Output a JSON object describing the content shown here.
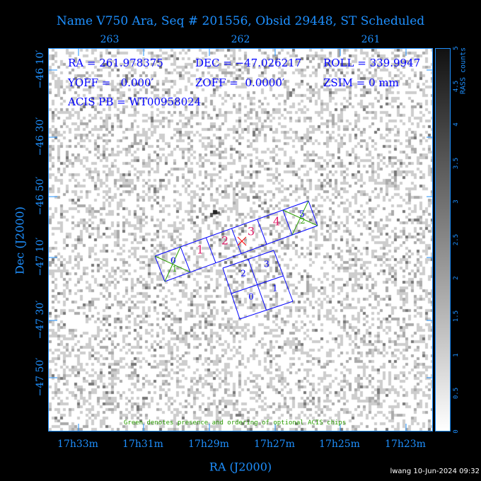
{
  "title": "Name V750 Ara, Seq # 201556, Obsid 29448, ST Scheduled",
  "top_axis": [
    "263",
    "262",
    "261"
  ],
  "bottom_axis": [
    "17h33m",
    "17h31m",
    "17h29m",
    "17h27m",
    "17h25m",
    "17h23m"
  ],
  "left_axis": [
    "−46 10′",
    "−46 30′",
    "−46 50′",
    "−47 10′",
    "−47 30′",
    "−47 50′"
  ],
  "xlabel": "RA (J2000)",
  "ylabel": "Dec (J2000)",
  "info": {
    "ra": "RA = 261.978375",
    "dec": "DEC = −47.026217",
    "roll": "ROLL = 339.9947",
    "yoff": "YOFF =   0.000′",
    "zoff": "ZOFF =  0.0000′",
    "zsim": "ZSIM = 0 mm",
    "acis_pb": "ACIS PB = WT00958024"
  },
  "colorbar": {
    "label": "RASS counts",
    "ticks": [
      "0",
      "0.5",
      "1",
      "1.5",
      "2",
      "2.5",
      "3",
      "3.5",
      "4",
      "4.5",
      "5"
    ],
    "range": [
      0,
      5
    ]
  },
  "acis_s_labels": [
    "0",
    "1",
    "2",
    "3",
    "4",
    "5"
  ],
  "acis_s_optional_labels": [
    "1",
    "2"
  ],
  "acis_i_labels": [
    "0",
    "1",
    "2",
    "3"
  ],
  "note": "Green denotes presence and ordering of optional ACIS chips",
  "stamp": "lwang 10-Jun-2024 09:32",
  "colors": {
    "axis": "#1e90ff",
    "chips": "#0000ff",
    "optional": "#2a9d00",
    "s_labels": "#e0206a",
    "target": "#ff0000"
  }
}
